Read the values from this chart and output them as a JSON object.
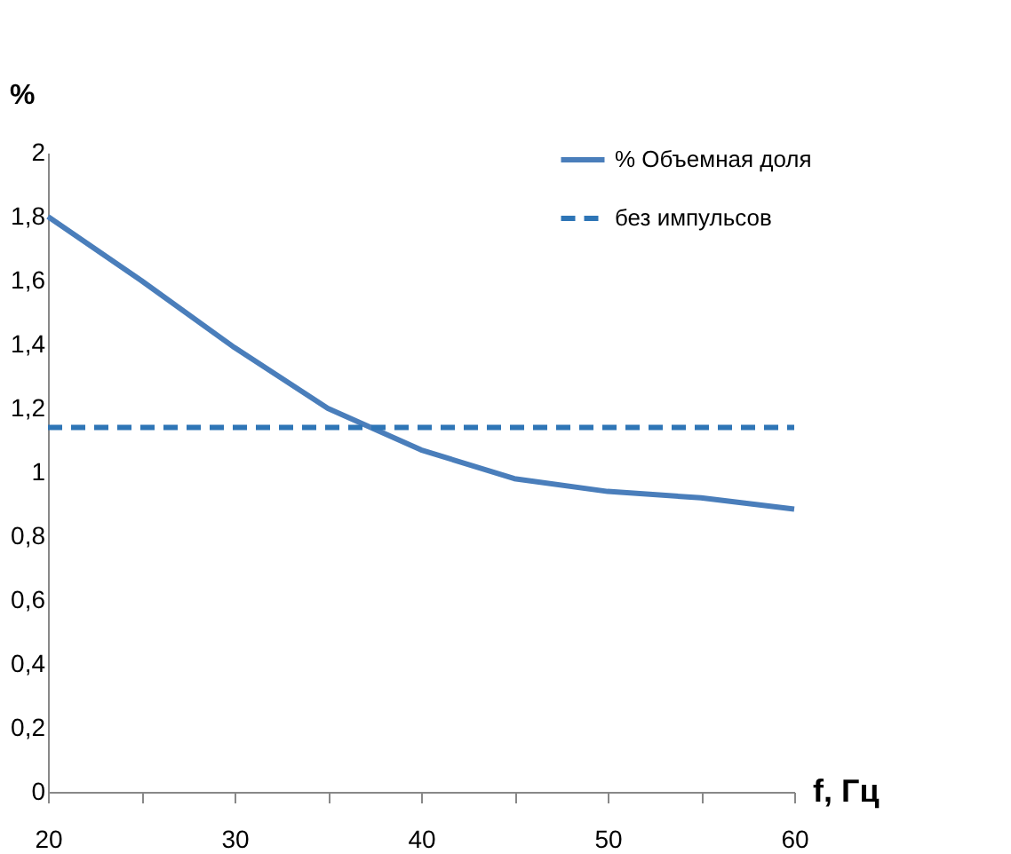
{
  "chart_data": {
    "type": "line",
    "xlabel": "f, Гц",
    "ylabel": "%",
    "series": [
      {
        "name": "% Объемная доля",
        "color": "#4a7ebb",
        "line_style": "solid",
        "x": [
          20,
          25,
          30,
          35,
          40,
          45,
          50,
          55,
          60
        ],
        "values": [
          1.8,
          1.6,
          1.39,
          1.2,
          1.07,
          0.98,
          0.94,
          0.92,
          0.885
        ]
      },
      {
        "name": "без импульсов",
        "color": "#2e75b6",
        "line_style": "dashed",
        "x": [
          20,
          60
        ],
        "values": [
          1.14,
          1.14
        ]
      }
    ],
    "xlim": [
      20,
      60
    ],
    "xticks": [
      20,
      {
        "value": 25,
        "label": null
      },
      30,
      {
        "value": 35,
        "label": null
      },
      40,
      {
        "value": 45,
        "label": null
      },
      50,
      {
        "value": 55,
        "label": null
      },
      60
    ],
    "ylim": [
      0,
      2
    ],
    "yticks": [
      0,
      {
        "value": 0.2,
        "label": "0,2"
      },
      {
        "value": 0.4,
        "label": "0,4"
      },
      {
        "value": 0.6,
        "label": "0,6"
      },
      {
        "value": 0.8,
        "label": "0,8"
      },
      1,
      {
        "value": 1.2,
        "label": "1,2"
      },
      {
        "value": 1.4,
        "label": "1,4"
      },
      {
        "value": 1.6,
        "label": "1,6"
      },
      {
        "value": 1.8,
        "label": "1,8"
      },
      2
    ],
    "grid": false,
    "legend": "top right",
    "marker": "none"
  }
}
